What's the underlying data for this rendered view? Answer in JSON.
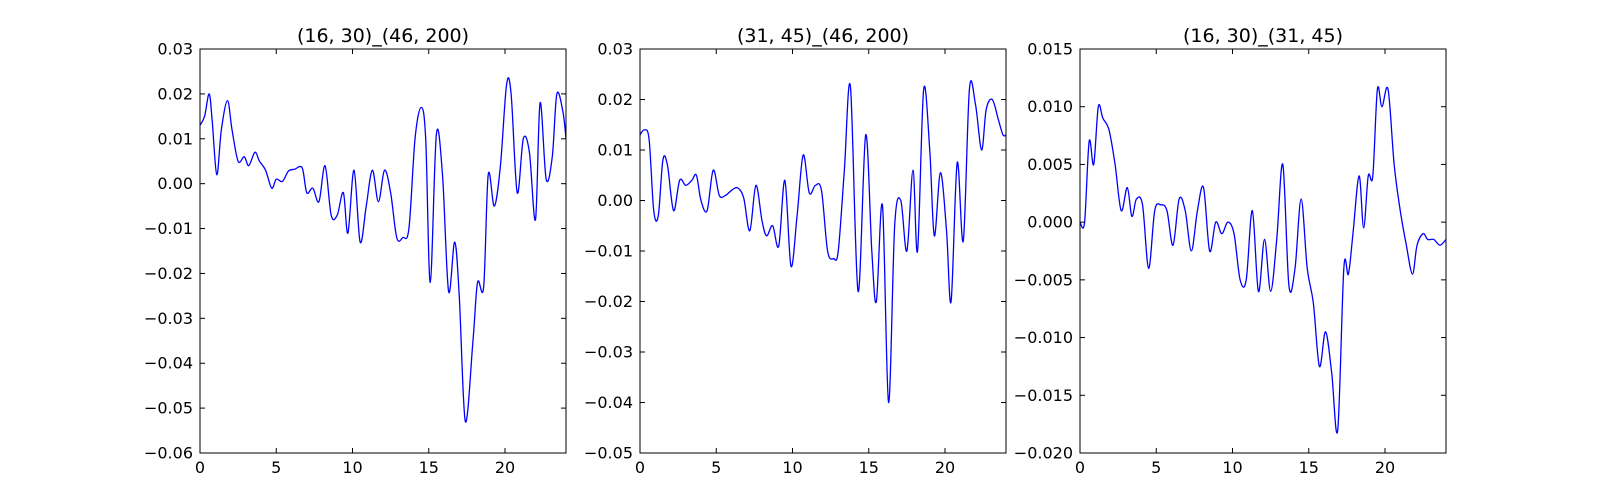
{
  "figure": {
    "line_color": "#0000ff",
    "frame_color": "#000000"
  },
  "chart_data": [
    {
      "type": "line",
      "title": "(16, 30)_(46, 200)",
      "xlabel": "",
      "ylabel": "",
      "xlim": [
        0,
        24
      ],
      "ylim": [
        -0.06,
        0.03
      ],
      "xticks": [
        0,
        5,
        10,
        15,
        20
      ],
      "xtick_labels": [
        "0",
        "5",
        "10",
        "15",
        "20"
      ],
      "yticks": [
        -0.06,
        -0.05,
        -0.04,
        -0.03,
        -0.02,
        -0.01,
        0.0,
        0.01,
        0.02,
        0.03
      ],
      "ytick_labels": [
        "−0.06",
        "−0.05",
        "−0.04",
        "−0.03",
        "−0.02",
        "−0.01",
        "0.00",
        "0.01",
        "0.02",
        "0.03"
      ],
      "grid": false,
      "series": [
        {
          "x": [
            0,
            0.3,
            0.6,
            0.8,
            1.1,
            1.4,
            1.8,
            2.1,
            2.5,
            2.9,
            3.2,
            3.6,
            3.9,
            4.3,
            4.7,
            5.0,
            5.4,
            5.8,
            6.2,
            6.7,
            7.0,
            7.4,
            7.8,
            8.2,
            8.6,
            9.0,
            9.4,
            9.7,
            10.1,
            10.5,
            10.9,
            11.3,
            11.7,
            12.1,
            12.5,
            12.9,
            13.3,
            13.7,
            14.1,
            14.5,
            14.8,
            15.1,
            15.5,
            15.9,
            16.3,
            16.7,
            17.0,
            17.4,
            17.9,
            18.2,
            18.6,
            18.9,
            19.3,
            19.7,
            20.1,
            20.4,
            20.8,
            21.2,
            21.6,
            22.0,
            22.3,
            22.7,
            23.1,
            23.4,
            23.8,
            24.0
          ],
          "y": [
            0.013,
            0.015,
            0.02,
            0.014,
            0.002,
            0.012,
            0.0185,
            0.012,
            0.005,
            0.006,
            0.004,
            0.007,
            0.005,
            0.003,
            -0.001,
            0.001,
            0.0005,
            0.0028,
            0.0032,
            0.0035,
            -0.002,
            -0.001,
            -0.004,
            0.004,
            -0.007,
            -0.007,
            -0.002,
            -0.011,
            0.003,
            -0.013,
            -0.005,
            0.003,
            -0.004,
            0.003,
            -0.002,
            -0.012,
            -0.012,
            -0.01,
            0.01,
            0.017,
            0.01,
            -0.022,
            0.011,
            0.002,
            -0.024,
            -0.013,
            -0.025,
            -0.053,
            -0.035,
            -0.022,
            -0.023,
            0.002,
            -0.005,
            0.004,
            0.022,
            0.02,
            -0.002,
            0.01,
            0.007,
            -0.008,
            0.018,
            0.001,
            0.006,
            0.02,
            0.016,
            0.01
          ]
        }
      ]
    },
    {
      "type": "line",
      "title": "(31, 45)_(46, 200)",
      "xlabel": "",
      "ylabel": "",
      "xlim": [
        0,
        24
      ],
      "ylim": [
        -0.05,
        0.03
      ],
      "xticks": [
        0,
        5,
        10,
        15,
        20
      ],
      "xtick_labels": [
        "0",
        "5",
        "10",
        "15",
        "20"
      ],
      "yticks": [
        -0.05,
        -0.04,
        -0.03,
        -0.02,
        -0.01,
        0.0,
        0.01,
        0.02,
        0.03
      ],
      "ytick_labels": [
        "−0.05",
        "−0.04",
        "−0.03",
        "−0.02",
        "−0.01",
        "0.00",
        "0.01",
        "0.02",
        "0.03"
      ],
      "grid": false,
      "series": [
        {
          "x": [
            0,
            0.3,
            0.6,
            0.9,
            1.2,
            1.5,
            1.8,
            2.2,
            2.6,
            3.0,
            3.4,
            3.7,
            4.0,
            4.4,
            4.8,
            5.2,
            5.6,
            6.0,
            6.4,
            6.8,
            7.2,
            7.6,
            8.0,
            8.3,
            8.7,
            9.1,
            9.5,
            9.9,
            10.3,
            10.7,
            11.1,
            11.5,
            11.9,
            12.3,
            12.7,
            13.0,
            13.4,
            13.8,
            14.3,
            14.8,
            15.2,
            15.5,
            15.9,
            16.3,
            16.7,
            17.1,
            17.5,
            17.9,
            18.2,
            18.6,
            19.0,
            19.3,
            19.7,
            20.1,
            20.4,
            20.8,
            21.2,
            21.6,
            22.0,
            22.4,
            22.7,
            23.1,
            23.5,
            23.8,
            24.0
          ],
          "y": [
            0.013,
            0.014,
            0.012,
            -0.002,
            -0.003,
            0.008,
            0.007,
            -0.002,
            0.004,
            0.003,
            0.004,
            0.005,
            0.0,
            -0.002,
            0.006,
            0.001,
            0.001,
            0.002,
            0.0025,
            0.0005,
            -0.006,
            0.003,
            -0.004,
            -0.007,
            -0.005,
            -0.009,
            0.004,
            -0.013,
            -0.003,
            0.009,
            0.0015,
            0.003,
            0.002,
            -0.01,
            -0.0115,
            -0.01,
            0.006,
            0.0225,
            -0.018,
            0.013,
            -0.01,
            -0.02,
            -0.001,
            -0.04,
            -0.005,
            0.0,
            -0.01,
            0.006,
            -0.01,
            0.022,
            0.01,
            -0.007,
            0.0055,
            -0.006,
            -0.02,
            0.0075,
            -0.008,
            0.022,
            0.019,
            0.01,
            0.018,
            0.02,
            0.016,
            0.013,
            0.013
          ]
        }
      ]
    },
    {
      "type": "line",
      "title": "(16, 30)_(31, 45)",
      "xlabel": "",
      "ylabel": "",
      "xlim": [
        0,
        24
      ],
      "ylim": [
        -0.02,
        0.015
      ],
      "xticks": [
        0,
        5,
        10,
        15,
        20
      ],
      "xtick_labels": [
        "0",
        "5",
        "10",
        "15",
        "20"
      ],
      "yticks": [
        -0.02,
        -0.015,
        -0.01,
        -0.005,
        0.0,
        0.005,
        0.01,
        0.015
      ],
      "ytick_labels": [
        "−0.020",
        "−0.015",
        "−0.010",
        "−0.005",
        "0.000",
        "0.005",
        "0.010",
        "0.015"
      ],
      "grid": false,
      "series": [
        {
          "x": [
            0,
            0.3,
            0.6,
            0.9,
            1.2,
            1.5,
            1.9,
            2.3,
            2.7,
            3.1,
            3.4,
            3.7,
            4.1,
            4.5,
            4.9,
            5.3,
            5.7,
            6.1,
            6.5,
            6.9,
            7.3,
            7.7,
            8.1,
            8.5,
            8.9,
            9.3,
            9.7,
            10.1,
            10.5,
            10.9,
            11.3,
            11.7,
            12.1,
            12.5,
            12.9,
            13.3,
            13.7,
            14.1,
            14.5,
            14.9,
            15.3,
            15.7,
            16.1,
            16.5,
            16.9,
            17.3,
            17.6,
            17.9,
            18.3,
            18.6,
            18.9,
            19.2,
            19.5,
            19.8,
            20.2,
            20.6,
            21.0,
            21.4,
            21.8,
            22.1,
            22.5,
            22.8,
            23.2,
            23.6,
            24.0
          ],
          "y": [
            0.0,
            0.0,
            0.007,
            0.005,
            0.01,
            0.009,
            0.008,
            0.005,
            0.001,
            0.003,
            0.0005,
            0.002,
            0.0015,
            -0.004,
            0.001,
            0.0015,
            0.001,
            -0.002,
            0.002,
            0.001,
            -0.0025,
            0.001,
            0.003,
            -0.0025,
            0.0,
            -0.001,
            0.0,
            -0.001,
            -0.005,
            -0.005,
            0.001,
            -0.006,
            -0.0015,
            -0.006,
            -0.0015,
            0.005,
            -0.0055,
            -0.004,
            0.002,
            -0.004,
            -0.007,
            -0.0125,
            -0.0095,
            -0.013,
            -0.018,
            -0.004,
            -0.0045,
            -0.001,
            0.004,
            -0.0005,
            0.004,
            0.004,
            0.0115,
            0.01,
            0.0115,
            0.005,
            0.001,
            -0.002,
            -0.0045,
            -0.002,
            -0.001,
            -0.0015,
            -0.0015,
            -0.002,
            -0.0015
          ]
        }
      ]
    }
  ]
}
